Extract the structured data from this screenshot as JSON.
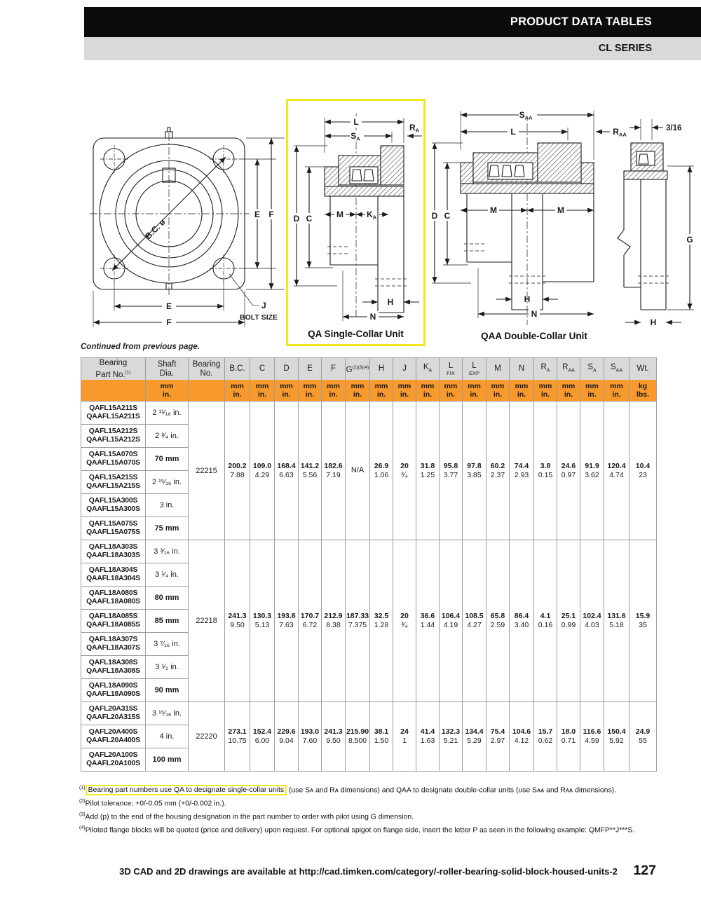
{
  "header": {
    "title": "PRODUCT DATA TABLES",
    "series": "CL SERIES"
  },
  "continued_note": "Continued from previous page.",
  "diagrams": {
    "flange": {
      "bc": "B.C. ø",
      "e": "E",
      "f": "F",
      "j": "J",
      "bolt_size": "BOLT SIZE"
    },
    "qa": {
      "caption": "QA Single-Collar Unit",
      "l": "L",
      "s": "S",
      "a": "A",
      "r": "R",
      "m": "M",
      "k": "K",
      "d": "D",
      "c": "C",
      "h": "H",
      "n": "N"
    },
    "qaa": {
      "caption": "QAA Double-Collar Unit",
      "s": "S",
      "aa": "AA",
      "l": "L",
      "r": "R",
      "m": "M",
      "d": "D",
      "c": "C",
      "g": "G",
      "h": "H",
      "n": "N",
      "fraction": "3/16"
    }
  },
  "table": {
    "fixed_columns": [
      {
        "lines": [
          "Bearing",
          "Part No."
        ],
        "sup": "(1)",
        "units": [
          "",
          ""
        ]
      },
      {
        "lines": [
          "Shaft",
          "Dia."
        ],
        "units": [
          "mm",
          "in."
        ]
      },
      {
        "lines": [
          "Bearing",
          "No."
        ],
        "units": [
          "",
          ""
        ]
      }
    ],
    "columns": [
      {
        "label": "B.C.",
        "units": [
          "mm",
          "in."
        ]
      },
      {
        "label": "C",
        "units": [
          "mm",
          "in."
        ]
      },
      {
        "label": "D",
        "units": [
          "mm",
          "in."
        ]
      },
      {
        "label": "E",
        "units": [
          "mm",
          "in."
        ]
      },
      {
        "label": "F",
        "units": [
          "mm",
          "in."
        ]
      },
      {
        "label": "G",
        "sup": "(2)(3)(4)",
        "units": [
          "mm",
          "in."
        ]
      },
      {
        "label": "H",
        "units": [
          "mm",
          "in."
        ]
      },
      {
        "label": "J",
        "units": [
          "mm",
          "in."
        ]
      },
      {
        "label": "K",
        "sub": "A",
        "units": [
          "mm",
          "in."
        ]
      },
      {
        "label": "L",
        "below": "FIX",
        "units": [
          "mm",
          "in."
        ]
      },
      {
        "label": "L",
        "below": "EXP",
        "units": [
          "mm",
          "in."
        ]
      },
      {
        "label": "M",
        "units": [
          "mm",
          "in."
        ]
      },
      {
        "label": "N",
        "units": [
          "mm",
          "in."
        ]
      },
      {
        "label": "R",
        "sub": "A",
        "units": [
          "mm",
          "in."
        ]
      },
      {
        "label": "R",
        "sub": "AA",
        "units": [
          "mm",
          "in."
        ]
      },
      {
        "label": "S",
        "sub": "A",
        "units": [
          "mm",
          "in."
        ]
      },
      {
        "label": "S",
        "sub": "AA",
        "units": [
          "mm",
          "in."
        ]
      },
      {
        "label": "Wt.",
        "units": [
          "kg",
          "lbs."
        ]
      }
    ],
    "groups": [
      {
        "bearing_no": "22215",
        "rows": [
          {
            "part_nos": [
              "QAFL15A211S",
              "QAAFL15A211S"
            ],
            "shaft_dia": "2 ¹¹⁄₁₆ in.",
            "bold": false
          },
          {
            "part_nos": [
              "QAFL15A212S",
              "QAAFL15A212S"
            ],
            "shaft_dia": "2 ³⁄₄ in.",
            "bold": false
          },
          {
            "part_nos": [
              "QAFL15A070S",
              "QAAFL15A070S"
            ],
            "shaft_dia": "70 mm",
            "bold": true
          },
          {
            "part_nos": [
              "QAFL15A215S",
              "QAAFL15A215S"
            ],
            "shaft_dia": "2 ¹⁵⁄₁₆ in.",
            "bold": false
          },
          {
            "part_nos": [
              "QAFL15A300S",
              "QAAFL15A300S"
            ],
            "shaft_dia": "3 in.",
            "bold": false
          },
          {
            "part_nos": [
              "QAFL15A075S",
              "QAAFL15A075S"
            ],
            "shaft_dia": "75 mm",
            "bold": true
          }
        ],
        "values": [
          [
            "200.2",
            "7.88"
          ],
          [
            "109.0",
            "4.29"
          ],
          [
            "168.4",
            "6.63"
          ],
          [
            "141.2",
            "5.56"
          ],
          [
            "182.6",
            "7.19"
          ],
          [
            "N/A"
          ],
          [
            "26.9",
            "1.06"
          ],
          [
            "20",
            "³⁄₄"
          ],
          [
            "31.8",
            "1.25"
          ],
          [
            "95.8",
            "3.77"
          ],
          [
            "97.8",
            "3.85"
          ],
          [
            "60.2",
            "2.37"
          ],
          [
            "74.4",
            "2.93"
          ],
          [
            "3.8",
            "0.15"
          ],
          [
            "24.6",
            "0.97"
          ],
          [
            "91.9",
            "3.62"
          ],
          [
            "120.4",
            "4.74"
          ],
          [
            "10.4",
            "23"
          ]
        ]
      },
      {
        "bearing_no": "22218",
        "rows": [
          {
            "part_nos": [
              "QAFL18A303S",
              "QAAFL18A303S"
            ],
            "shaft_dia": "3 ³⁄₁₆ in.",
            "bold": false
          },
          {
            "part_nos": [
              "QAFL18A304S",
              "QAAFL18A304S"
            ],
            "shaft_dia": "3 ¹⁄₄ in.",
            "bold": false
          },
          {
            "part_nos": [
              "QAFL18A080S",
              "QAAFL18A080S"
            ],
            "shaft_dia": "80 mm",
            "bold": true
          },
          {
            "part_nos": [
              "QAFL18A085S",
              "QAAFL18A085S"
            ],
            "shaft_dia": "85 mm",
            "bold": true
          },
          {
            "part_nos": [
              "QAFL18A307S",
              "QAAFL18A307S"
            ],
            "shaft_dia": "3 ⁷⁄₁₆ in.",
            "bold": false
          },
          {
            "part_nos": [
              "QAFL18A308S",
              "QAAFL18A308S"
            ],
            "shaft_dia": "3 ¹⁄₂ in.",
            "bold": false
          },
          {
            "part_nos": [
              "QAFL18A090S",
              "QAAFL18A090S"
            ],
            "shaft_dia": "90 mm",
            "bold": true
          }
        ],
        "values": [
          [
            "241.3",
            "9.50"
          ],
          [
            "130.3",
            "5.13"
          ],
          [
            "193.8",
            "7.63"
          ],
          [
            "170.7",
            "6.72"
          ],
          [
            "212.9",
            "8.38"
          ],
          [
            "187.33",
            "7.375"
          ],
          [
            "32.5",
            "1.28"
          ],
          [
            "20",
            "³⁄₄"
          ],
          [
            "36.6",
            "1.44"
          ],
          [
            "106.4",
            "4.19"
          ],
          [
            "108.5",
            "4.27"
          ],
          [
            "65.8",
            "2.59"
          ],
          [
            "86.4",
            "3.40"
          ],
          [
            "4.1",
            "0.16"
          ],
          [
            "25.1",
            "0.99"
          ],
          [
            "102.4",
            "4.03"
          ],
          [
            "131.6",
            "5.18"
          ],
          [
            "15.9",
            "35"
          ]
        ]
      },
      {
        "bearing_no": "22220",
        "rows": [
          {
            "part_nos": [
              "QAFL20A315S",
              "QAAFL20A315S"
            ],
            "shaft_dia": "3 ¹⁵⁄₁₆ in.",
            "bold": false
          },
          {
            "part_nos": [
              "QAFL20A400S",
              "QAAFL20A400S"
            ],
            "shaft_dia": "4 in.",
            "bold": false
          },
          {
            "part_nos": [
              "QAFL20A100S",
              "QAAFL20A100S"
            ],
            "shaft_dia": "100 mm",
            "bold": true
          }
        ],
        "values": [
          [
            "273.1",
            "10.75"
          ],
          [
            "152.4",
            "6.00"
          ],
          [
            "229.6",
            "9.04"
          ],
          [
            "193.0",
            "7.60"
          ],
          [
            "241.3",
            "9.50"
          ],
          [
            "215.90",
            "8.500"
          ],
          [
            "38.1",
            "1.50"
          ],
          [
            "24",
            "1"
          ],
          [
            "41.4",
            "1.63"
          ],
          [
            "132.3",
            "5.21"
          ],
          [
            "134.4",
            "5.29"
          ],
          [
            "75.4",
            "2.97"
          ],
          [
            "104.6",
            "4.12"
          ],
          [
            "15.7",
            "0.62"
          ],
          [
            "18.0",
            "0.71"
          ],
          [
            "116.6",
            "4.59"
          ],
          [
            "150.4",
            "5.92"
          ],
          [
            "24.9",
            "55"
          ]
        ]
      }
    ]
  },
  "footnotes": [
    {
      "marker": "(1)",
      "highlight": "Bearing part numbers use QA to designate single-collar units",
      "rest": " (use Sᴀ and Rᴀ dimensions) and QAA to designate double-collar units (use Sᴀᴀ and Rᴀᴀ dimensions)."
    },
    {
      "marker": "(2)",
      "text": "Pilot tolerance: +0/-0.05 mm (+0/-0.002 in.)."
    },
    {
      "marker": "(3)",
      "text": "Add (p) to the end of the housing designation in the part number to order with pilot using G dimension."
    },
    {
      "marker": "(4)",
      "text": "Piloted flange blocks will be quoted (price and delivery) upon request. For optional spigot on flange side, insert the letter P as seen in the following example: QMFP**J***S."
    }
  ],
  "footer": {
    "text": "3D CAD and 2D drawings are available at http://cad.timken.com/category/-roller-bearing-solid-block-housed-units-2",
    "page": "127"
  }
}
